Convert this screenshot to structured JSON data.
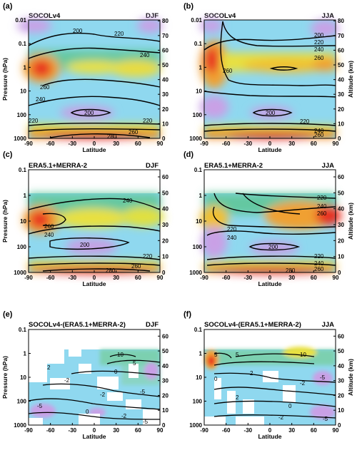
{
  "figure": {
    "panels": [
      {
        "letter": "(a)",
        "dataset": "SOCOLv4",
        "season": "DJF"
      },
      {
        "letter": "(b)",
        "dataset": "SOCOLv4",
        "season": "JJA"
      },
      {
        "letter": "(c)",
        "dataset": "ERA5.1+MERRA-2",
        "season": "DJF"
      },
      {
        "letter": "(d)",
        "dataset": "ERA5.1+MERRA-2",
        "season": "JJA"
      },
      {
        "letter": "(e)",
        "dataset": "SOCOLv4-(ERA5.1+MERRA-2)",
        "season": "DJF"
      },
      {
        "letter": "(f)",
        "dataset": "SOCOLv4-(ERA5.1+MERRA-2)",
        "season": "JJA"
      }
    ],
    "xlabel": "Latitude",
    "ylabel_left": "Pressure (hPa)",
    "ylabel_right": "Altitude (km)",
    "x_ticks": [
      "-90",
      "-60",
      "-30",
      "0",
      "30",
      "60",
      "90"
    ],
    "p_ticks": [
      "0.01",
      "0.1",
      "1",
      "10",
      "100",
      "1000"
    ],
    "alt_ticks": [
      "0",
      "10",
      "20",
      "30",
      "40",
      "50",
      "60",
      "70",
      "80"
    ]
  },
  "chart_data": [
    {
      "type": "heatmap",
      "title": "SOCOLv4",
      "season": "DJF",
      "x_range": [
        -90,
        90
      ],
      "y_range_hPa": [
        1000,
        0.01
      ],
      "y_scale": "log",
      "contour_labels": [
        "200",
        "220",
        "240",
        "260",
        "240",
        "220",
        "200",
        "220",
        "260",
        "280"
      ],
      "colormap": [
        "#b070d8",
        "#88d8f0",
        "#4fc290",
        "#e0e040",
        "#f08a20",
        "#e82020"
      ]
    },
    {
      "type": "heatmap",
      "title": "SOCOLv4",
      "season": "JJA",
      "x_range": [
        -90,
        90
      ],
      "y_range_hPa": [
        1000,
        0.01
      ],
      "y_scale": "log",
      "contour_labels": [
        "200",
        "220",
        "240",
        "260",
        "260",
        "200",
        "220",
        "240",
        "260"
      ],
      "colormap": [
        "#b070d8",
        "#88d8f0",
        "#4fc290",
        "#e0e040",
        "#f08a20",
        "#e82020"
      ]
    },
    {
      "type": "heatmap",
      "title": "ERA5.1+MERRA-2",
      "season": "DJF",
      "x_range": [
        -90,
        90
      ],
      "y_range_hPa": [
        1000,
        0.1
      ],
      "y_scale": "log",
      "contour_labels": [
        "240",
        "260",
        "240",
        "200",
        "220",
        "260",
        "280"
      ],
      "colormap": [
        "#b070d8",
        "#88d8f0",
        "#4fc290",
        "#e0e040",
        "#f08a20",
        "#e82020"
      ]
    },
    {
      "type": "heatmap",
      "title": "ERA5.1+MERRA-2",
      "season": "JJA",
      "x_range": [
        -90,
        90
      ],
      "y_range_hPa": [
        1000,
        0.1
      ],
      "y_scale": "log",
      "contour_labels": [
        "220",
        "240",
        "260",
        "220",
        "240",
        "200",
        "220",
        "240",
        "260",
        "280"
      ],
      "colormap": [
        "#b070d8",
        "#88d8f0",
        "#4fc290",
        "#e0e040",
        "#f08a20",
        "#e82020"
      ]
    },
    {
      "type": "heatmap",
      "title": "SOCOLv4-(ERA5.1+MERRA-2)",
      "season": "DJF",
      "x_range": [
        -90,
        90
      ],
      "y_range_hPa": [
        1000,
        0.1
      ],
      "y_scale": "log",
      "contour_labels": [
        "10",
        "5",
        "0",
        "-2",
        "2",
        "-5",
        "-2",
        "-5",
        "0",
        "-2",
        "-5"
      ],
      "colormap": [
        "#b070d8",
        "#88d8f0",
        "#4fc290",
        "#e0e040",
        "#f08a20",
        "#e82020"
      ]
    },
    {
      "type": "heatmap",
      "title": "SOCOLv4-(ERA5.1+MERRA-2)",
      "season": "JJA",
      "x_range": [
        -90,
        90
      ],
      "y_range_hPa": [
        1000,
        0.1
      ],
      "y_scale": "log",
      "contour_labels": [
        "5",
        "10",
        "5",
        "2",
        "0",
        "-2",
        "-5",
        "2",
        "0",
        "-2",
        "-5"
      ],
      "colormap": [
        "#b070d8",
        "#88d8f0",
        "#4fc290",
        "#e0e040",
        "#f08a20",
        "#e82020"
      ]
    }
  ]
}
